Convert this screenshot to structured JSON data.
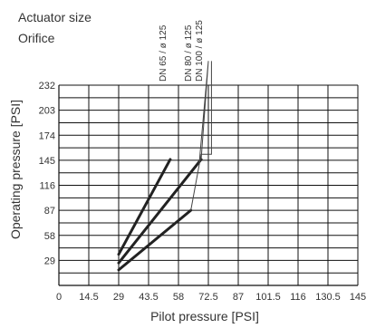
{
  "chart_data": {
    "type": "line",
    "title_lines": [
      "Actuator size",
      "Orifice"
    ],
    "xlabel": "Pilot pressure [PSI]",
    "ylabel": "Operating pressure [PSI]",
    "xlim": [
      0,
      145
    ],
    "ylim": [
      0,
      232
    ],
    "x_ticks": [
      0,
      14.5,
      29,
      43.5,
      58,
      72.5,
      87,
      101.5,
      116,
      130.5,
      145
    ],
    "x_tick_labels": [
      "0",
      "14.5",
      "29",
      "43.5",
      "58",
      "72.5",
      "87",
      "101.5",
      "116",
      "130.5",
      "145"
    ],
    "y_ticks": [
      29,
      58,
      87,
      116,
      145,
      174,
      203,
      232
    ],
    "y_tick_labels": [
      "29",
      "58",
      "87",
      "116",
      "145",
      "174",
      "203",
      "232"
    ],
    "grid": true,
    "series": [
      {
        "name": "DN 65 / ø 125",
        "x": [
          29,
          54
        ],
        "y": [
          36,
          146
        ]
      },
      {
        "name": "DN 80 / ø 125",
        "x": [
          29,
          69
        ],
        "y": [
          26,
          146
        ]
      },
      {
        "name": "DN 100 / ø 125",
        "x": [
          29,
          64
        ],
        "y": [
          18,
          87
        ]
      }
    ],
    "thin_lines": [
      {
        "name": "DN 80 / ø 125",
        "x": [
          68,
          72.5,
          69
        ],
        "y": [
          140,
          260,
          146
        ]
      },
      {
        "name": "DN 100 / ø 125",
        "x": [
          64,
          69,
          74,
          74
        ],
        "y": [
          87,
          152,
          152,
          260
        ]
      }
    ],
    "colors": {
      "thick_line": "#222222",
      "thin_line": "#444444",
      "grid": "#111111",
      "text": "#333333"
    }
  }
}
